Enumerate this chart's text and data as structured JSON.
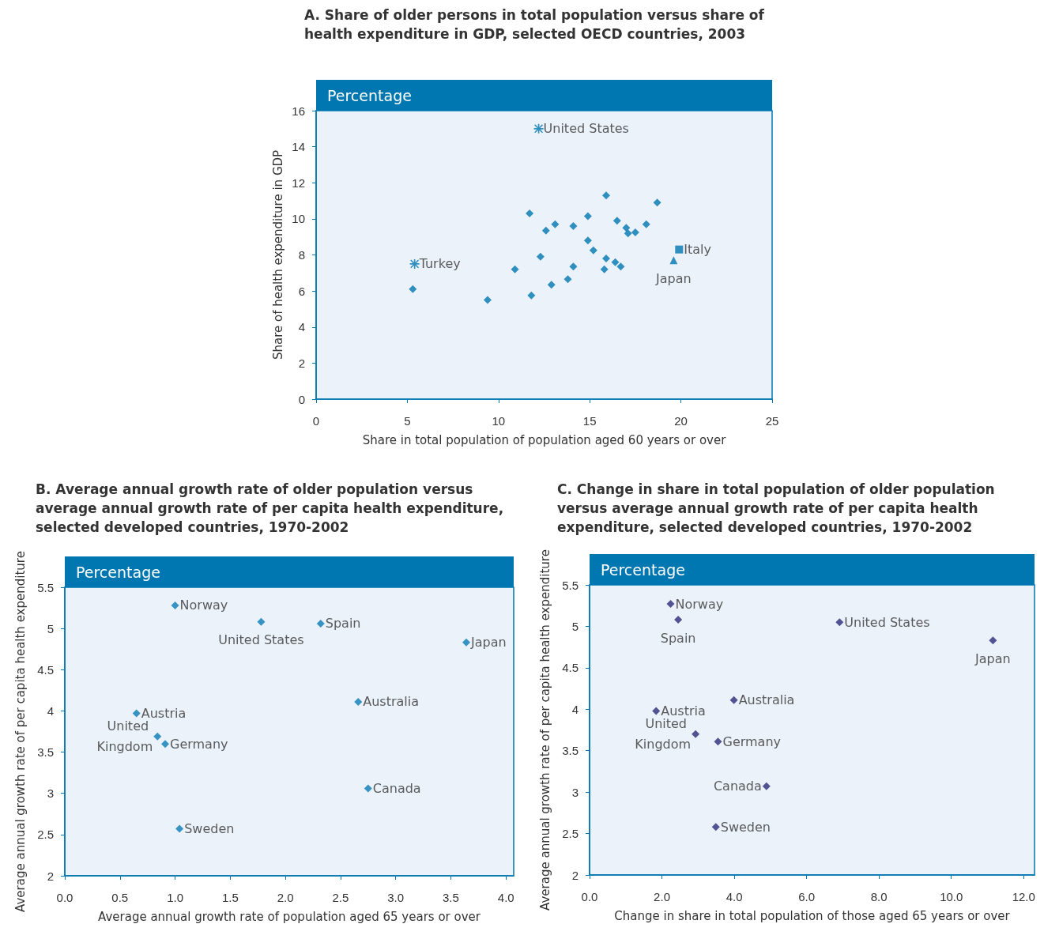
{
  "chart_data": [
    {
      "type": "scatter",
      "title": "A. Share of older persons in total population versus share of health expenditure in GDP, selected OECD countries, 2003",
      "subtitle": "Percentage",
      "xlabel": "Share in total population of population aged 60 years or over",
      "ylabel": "Share of health expenditure in GDP",
      "xlim": [
        0,
        25
      ],
      "xticks": [
        0,
        5,
        10,
        15,
        20,
        25
      ],
      "ylim": [
        0,
        16
      ],
      "yticks": [
        0,
        2,
        4,
        6,
        8,
        10,
        12,
        14,
        16
      ],
      "marker": "diamond",
      "series": [
        {
          "color": "#0077b0",
          "x": [
            5.3,
            9.4,
            10.9,
            11.7,
            11.8,
            12.3,
            12.6,
            12.9,
            13.1,
            13.8,
            14.1,
            14.1,
            14.9,
            14.9,
            15.2,
            15.9,
            15.9,
            15.8,
            16.5,
            16.4,
            16.7,
            17.0,
            17.1,
            17.5,
            18.1,
            18.7
          ],
          "values": [
            6.1,
            5.5,
            7.2,
            10.3,
            5.75,
            7.9,
            9.35,
            6.35,
            9.7,
            6.65,
            9.6,
            7.35,
            10.15,
            8.8,
            8.25,
            11.3,
            7.8,
            7.2,
            9.9,
            7.6,
            7.35,
            9.5,
            9.2,
            9.25,
            9.7,
            10.9
          ]
        },
        {
          "color": "#0077b0",
          "marker": "cross",
          "x": [
            12.2,
            5.4
          ],
          "values": [
            15.0,
            7.5
          ]
        },
        {
          "color": "#0077b0",
          "marker": "square",
          "x": [
            19.9
          ],
          "values": [
            8.3
          ]
        },
        {
          "color": "#0077b0",
          "marker": "triangle",
          "x": [
            19.6
          ],
          "values": [
            7.7
          ]
        }
      ],
      "annotations": [
        {
          "text": "United States",
          "x": 12.2,
          "y": 15.0
        },
        {
          "text": "Turkey",
          "x": 5.4,
          "y": 7.5
        },
        {
          "text": "Italy",
          "x": 19.9,
          "y": 8.3
        },
        {
          "text": "Japan",
          "x": 19.6,
          "y": 7.7
        }
      ]
    },
    {
      "type": "scatter",
      "title": "B. Average annual growth rate of older population versus average annual growth rate of per capita health expenditure, selected developed countries, 1970-2002",
      "subtitle": "Percentage",
      "xlabel": "Average annual growth rate of population aged 65 years or over",
      "ylabel": "Average annual growth rate of per capita health expenditure",
      "xlim": [
        0,
        4.07
      ],
      "xticks": [
        {
          "value": 0,
          "label": "0.0"
        },
        0.5,
        {
          "value": 1,
          "label": "1.0"
        },
        1.5,
        {
          "value": 2,
          "label": "2.0"
        },
        2.5,
        {
          "value": 3,
          "label": "3.0"
        },
        3.5,
        {
          "value": 4,
          "label": "4.0"
        }
      ],
      "ylim": [
        2,
        5.5
      ],
      "yticks": [
        2,
        2.5,
        3,
        3.5,
        4,
        4.5,
        5,
        5.5
      ],
      "marker": "diamond",
      "series": [
        {
          "color": "#0a7ab5",
          "x": [
            1.0,
            1.78,
            2.32,
            3.64,
            2.66,
            0.65,
            0.84,
            0.91,
            2.75,
            1.04
          ],
          "values": [
            5.28,
            5.08,
            5.06,
            4.83,
            4.11,
            3.97,
            3.69,
            3.6,
            3.06,
            2.57
          ]
        }
      ],
      "annotations": [
        {
          "text": "Norway",
          "x": 1.0,
          "y": 5.28
        },
        {
          "text": "United States",
          "x": 1.78,
          "y": 5.08
        },
        {
          "text": "Spain",
          "x": 2.32,
          "y": 5.06
        },
        {
          "text": "Japan",
          "x": 3.64,
          "y": 4.83
        },
        {
          "text": "Australia",
          "x": 2.66,
          "y": 4.11
        },
        {
          "text": "Austria",
          "x": 0.65,
          "y": 3.97
        },
        {
          "text": "United Kingdom",
          "x": 0.84,
          "y": 3.69
        },
        {
          "text": "Germany",
          "x": 0.91,
          "y": 3.6
        },
        {
          "text": "Canada",
          "x": 2.75,
          "y": 3.06
        },
        {
          "text": "Sweden",
          "x": 1.04,
          "y": 2.57
        }
      ]
    },
    {
      "type": "scatter",
      "title": "C. Change in share in total population of older population versus average annual growth rate of per capita health expenditure, selected developed countries, 1970-2002",
      "subtitle": "Percentage",
      "xlabel": "Change in share in total population of those aged 65 years or over",
      "ylabel": "Average annual growth rate of per capita health expenditure",
      "xlim": [
        0,
        12.3
      ],
      "xticks": [
        {
          "value": 0,
          "label": "0.0"
        },
        {
          "value": 2,
          "label": "2.0"
        },
        {
          "value": 4,
          "label": "4.0"
        },
        {
          "value": 6,
          "label": "6.0"
        },
        {
          "value": 8,
          "label": "8.0"
        },
        {
          "value": 10,
          "label": "10.0"
        },
        {
          "value": 12,
          "label": "12.0"
        }
      ],
      "ylim": [
        2,
        5.5
      ],
      "yticks": [
        2,
        2.5,
        3,
        3.5,
        4,
        4.5,
        5,
        5.5
      ],
      "marker": "diamond",
      "series": [
        {
          "color": "#2b2a78",
          "x": [
            2.24,
            2.45,
            6.91,
            11.15,
            3.99,
            1.84,
            2.93,
            3.55,
            4.89,
            3.49
          ],
          "values": [
            5.27,
            5.08,
            5.05,
            4.83,
            4.11,
            3.98,
            3.7,
            3.61,
            3.07,
            2.58
          ]
        }
      ],
      "annotations": [
        {
          "text": "Norway",
          "x": 2.24,
          "y": 5.27
        },
        {
          "text": "Spain",
          "x": 2.45,
          "y": 5.08
        },
        {
          "text": "United States",
          "x": 6.91,
          "y": 5.05
        },
        {
          "text": "Japan",
          "x": 11.15,
          "y": 4.83
        },
        {
          "text": "Australia",
          "x": 3.99,
          "y": 4.11
        },
        {
          "text": "Austria",
          "x": 1.84,
          "y": 3.98
        },
        {
          "text": "United Kingdom",
          "x": 2.93,
          "y": 3.7
        },
        {
          "text": "Germany",
          "x": 3.55,
          "y": 3.61
        },
        {
          "text": "Canada",
          "x": 4.89,
          "y": 3.07
        },
        {
          "text": "Sweden",
          "x": 3.49,
          "y": 2.58
        }
      ]
    }
  ]
}
